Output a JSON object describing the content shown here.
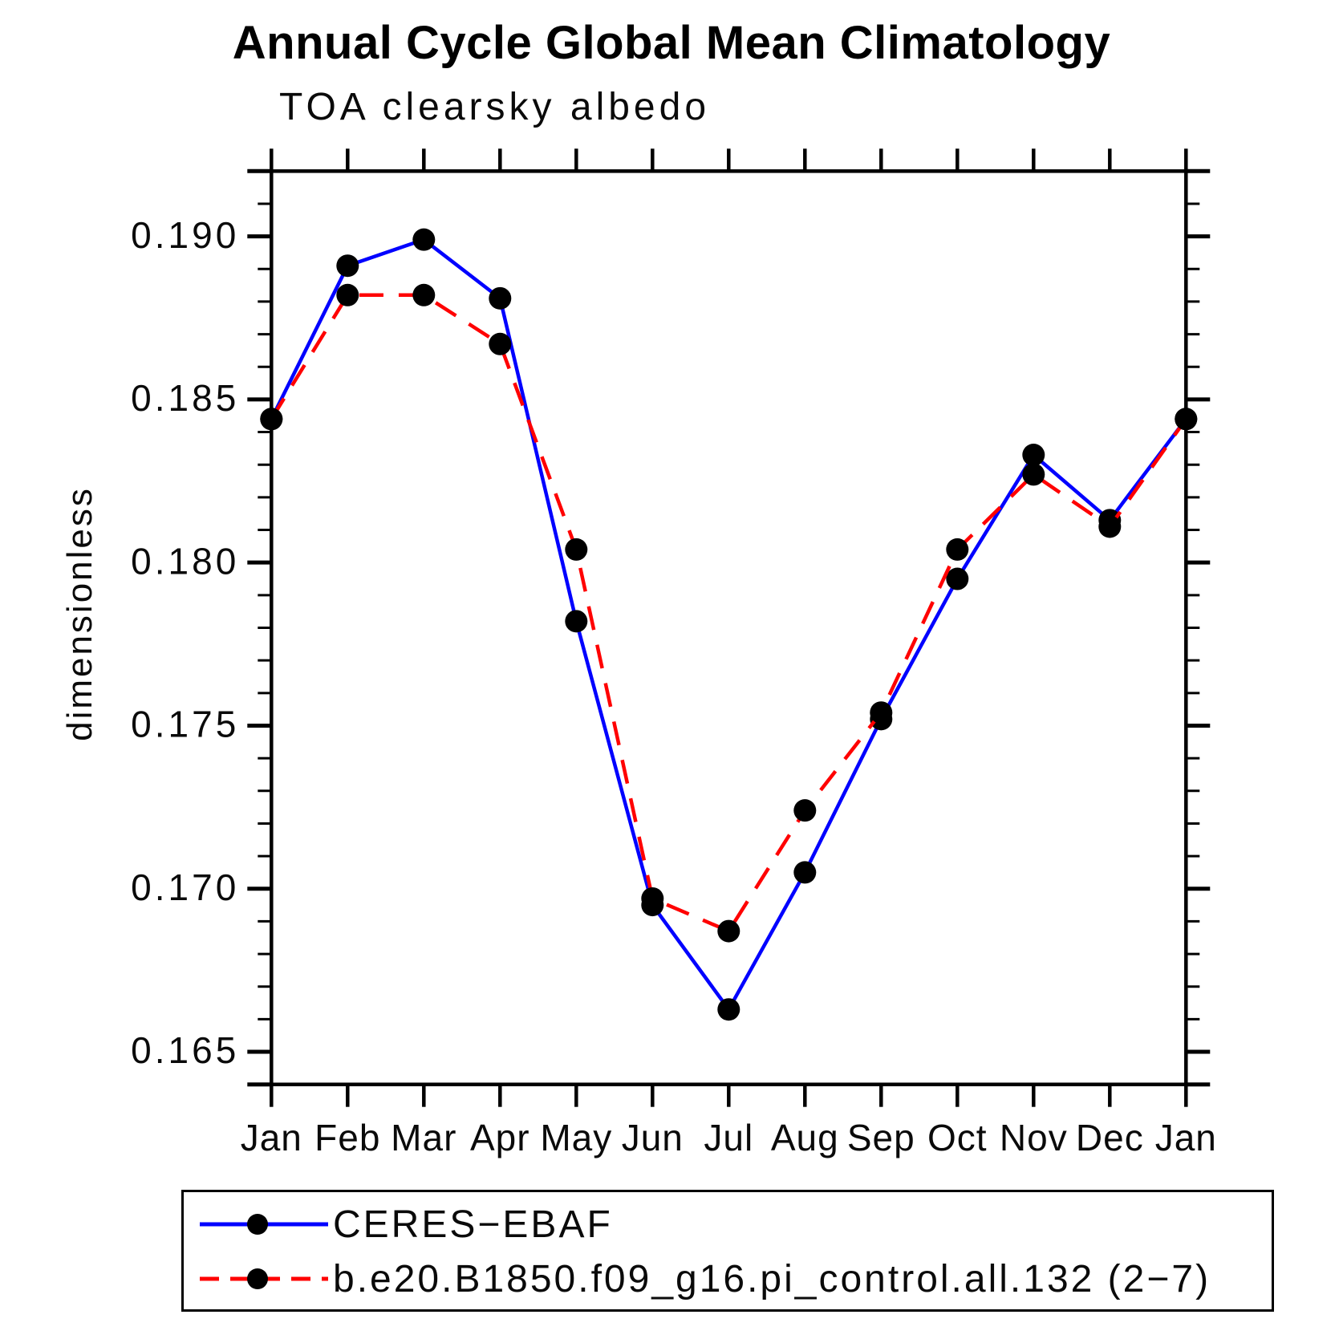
{
  "chart_data": {
    "type": "line",
    "title": "Annual Cycle Global Mean Climatology",
    "subtitle": "TOA clearsky albedo",
    "ylabel": "dimensionless",
    "xlabel": "",
    "x_categories": [
      "Jan",
      "Feb",
      "Mar",
      "Apr",
      "May",
      "Jun",
      "Jul",
      "Aug",
      "Sep",
      "Oct",
      "Nov",
      "Dec",
      "Jan"
    ],
    "series": [
      {
        "name": "CERES−EBAF",
        "color": "#0000ff",
        "line_style": "solid",
        "marker": "black-dot",
        "values": [
          0.1844,
          0.1891,
          0.1899,
          0.1881,
          0.1782,
          0.1695,
          0.1663,
          0.1705,
          0.1752,
          0.1795,
          0.1833,
          0.1813,
          0.1844
        ]
      },
      {
        "name": "b.e20.B1850.f09_g16.pi_control.all.132 (2−7)",
        "color": "#ff0000",
        "line_style": "dashed",
        "marker": "black-dot",
        "values": [
          0.1844,
          0.1882,
          0.1882,
          0.1867,
          0.1804,
          0.1697,
          0.1687,
          0.1724,
          0.1754,
          0.1804,
          0.1827,
          0.1811,
          0.1844
        ]
      }
    ],
    "ylim": [
      0.164,
      0.192
    ],
    "y_major_ticks": [
      0.165,
      0.17,
      0.175,
      0.18,
      0.185,
      0.19
    ],
    "y_tick_labels": [
      "0.165",
      "0.170",
      "0.175",
      "0.180",
      "0.185",
      "0.190"
    ],
    "y_minor_tick_step": 0.001,
    "grid": false,
    "legend_position": "bottom",
    "marker_color": "#000000",
    "axis_color": "#000000"
  }
}
